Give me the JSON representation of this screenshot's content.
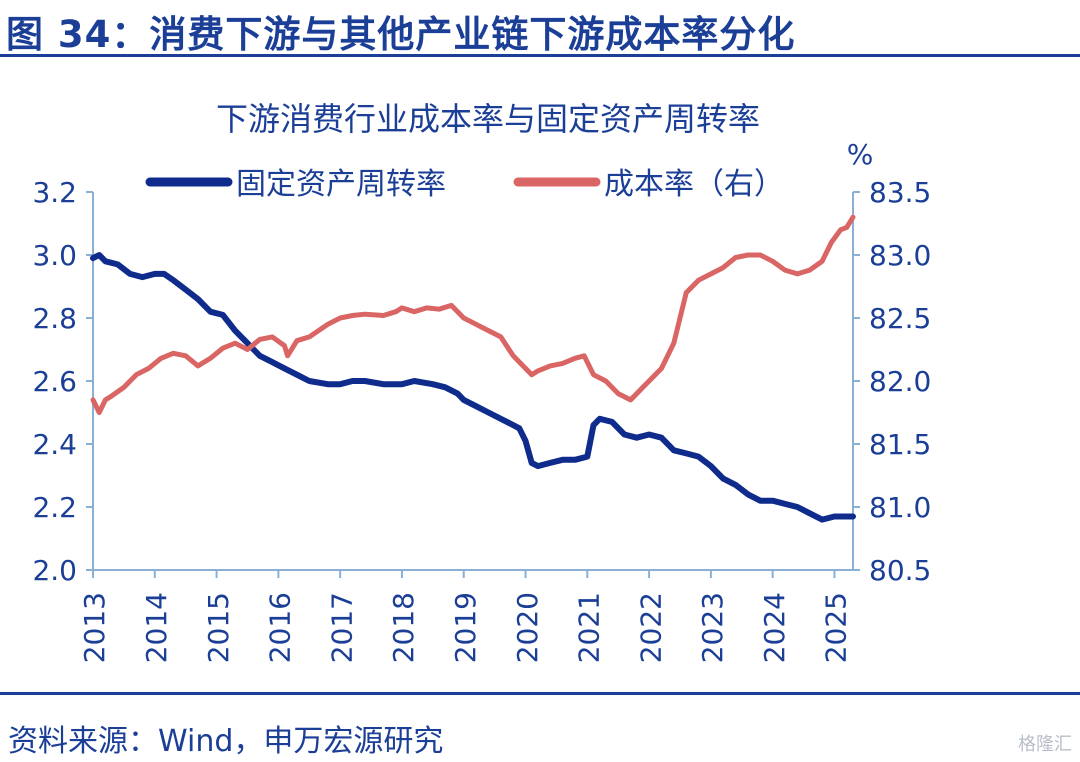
{
  "figure": {
    "title": "图 34：消费下游与其他产业链下游成本率分化",
    "source": "资料来源：Wind，申万宏源研究",
    "watermark": "格隆汇"
  },
  "colors": {
    "brand": "#1b3f96",
    "navy_series": "#0f2c8c",
    "red_series": "#d96564",
    "axis": "#8ab0d6",
    "text": "#1b3f96"
  },
  "chart_data": {
    "type": "line",
    "title": "下游消费行业成本率与固定资产周转率",
    "right_axis_unit": "%",
    "legend_position": "top",
    "grid": false,
    "x_ticks": [
      "2013",
      "2014",
      "2015",
      "2016",
      "2017",
      "2018",
      "2019",
      "2020",
      "2021",
      "2022",
      "2023",
      "2024",
      "2025"
    ],
    "y_left": {
      "range": [
        2.0,
        3.2
      ],
      "ticks": [
        "2.0",
        "2.2",
        "2.4",
        "2.6",
        "2.8",
        "3.0",
        "3.2"
      ]
    },
    "y_right": {
      "range": [
        80.5,
        83.5
      ],
      "ticks": [
        "80.5",
        "81.0",
        "81.5",
        "82.0",
        "82.5",
        "83.0",
        "83.5"
      ]
    },
    "series": [
      {
        "name": "固定资产周转率",
        "axis": "left",
        "color": "#0f2c8c",
        "x": [
          2013.0,
          2013.1,
          2013.2,
          2013.4,
          2013.6,
          2013.8,
          2014.0,
          2014.15,
          2014.3,
          2014.5,
          2014.7,
          2014.9,
          2015.1,
          2015.3,
          2015.5,
          2015.7,
          2015.9,
          2016.1,
          2016.3,
          2016.5,
          2016.8,
          2017.0,
          2017.2,
          2017.4,
          2017.7,
          2018.0,
          2018.2,
          2018.5,
          2018.7,
          2018.9,
          2019.0,
          2019.2,
          2019.4,
          2019.7,
          2019.9,
          2020.0,
          2020.1,
          2020.2,
          2020.4,
          2020.6,
          2020.8,
          2021.0,
          2021.1,
          2021.2,
          2021.4,
          2021.6,
          2021.8,
          2022.0,
          2022.2,
          2022.4,
          2022.6,
          2022.8,
          2023.0,
          2023.2,
          2023.4,
          2023.6,
          2023.8,
          2024.0,
          2024.2,
          2024.4,
          2024.6,
          2024.8,
          2025.0,
          2025.2,
          2025.3
        ],
        "values": [
          2.99,
          3.0,
          2.98,
          2.97,
          2.94,
          2.93,
          2.94,
          2.94,
          2.92,
          2.89,
          2.86,
          2.82,
          2.81,
          2.76,
          2.72,
          2.68,
          2.66,
          2.64,
          2.62,
          2.6,
          2.59,
          2.59,
          2.6,
          2.6,
          2.59,
          2.59,
          2.6,
          2.59,
          2.58,
          2.56,
          2.54,
          2.52,
          2.5,
          2.47,
          2.45,
          2.41,
          2.34,
          2.33,
          2.34,
          2.35,
          2.35,
          2.36,
          2.46,
          2.48,
          2.47,
          2.43,
          2.42,
          2.43,
          2.42,
          2.38,
          2.37,
          2.36,
          2.33,
          2.29,
          2.27,
          2.24,
          2.22,
          2.22,
          2.21,
          2.2,
          2.18,
          2.16,
          2.17,
          2.17,
          2.17
        ]
      },
      {
        "name": "成本率（右）",
        "axis": "right",
        "color": "#d96564",
        "x": [
          2013.0,
          2013.1,
          2013.2,
          2013.3,
          2013.5,
          2013.7,
          2013.9,
          2014.1,
          2014.3,
          2014.5,
          2014.7,
          2014.9,
          2015.1,
          2015.3,
          2015.5,
          2015.7,
          2015.9,
          2016.1,
          2016.15,
          2016.3,
          2016.5,
          2016.8,
          2017.0,
          2017.2,
          2017.4,
          2017.7,
          2017.9,
          2018.0,
          2018.2,
          2018.4,
          2018.6,
          2018.8,
          2019.0,
          2019.2,
          2019.4,
          2019.6,
          2019.8,
          2020.0,
          2020.1,
          2020.2,
          2020.4,
          2020.6,
          2020.8,
          2020.95,
          2021.1,
          2021.3,
          2021.5,
          2021.7,
          2021.9,
          2022.0,
          2022.2,
          2022.4,
          2022.6,
          2022.8,
          2023.0,
          2023.2,
          2023.4,
          2023.6,
          2023.8,
          2024.0,
          2024.2,
          2024.4,
          2024.6,
          2024.8,
          2024.95,
          2025.1,
          2025.2,
          2025.3
        ],
        "values": [
          81.85,
          81.75,
          81.85,
          81.88,
          81.95,
          82.05,
          82.1,
          82.18,
          82.22,
          82.2,
          82.12,
          82.18,
          82.26,
          82.3,
          82.25,
          82.33,
          82.35,
          82.28,
          82.2,
          82.32,
          82.35,
          82.45,
          82.5,
          82.52,
          82.53,
          82.52,
          82.55,
          82.58,
          82.55,
          82.58,
          82.57,
          82.6,
          82.5,
          82.45,
          82.4,
          82.35,
          82.2,
          82.1,
          82.05,
          82.08,
          82.12,
          82.14,
          82.18,
          82.2,
          82.05,
          82.0,
          81.9,
          81.85,
          81.95,
          82.0,
          82.1,
          82.3,
          82.7,
          82.8,
          82.85,
          82.9,
          82.98,
          83.0,
          83.0,
          82.95,
          82.88,
          82.85,
          82.88,
          82.95,
          83.1,
          83.2,
          83.22,
          83.3
        ]
      }
    ]
  }
}
